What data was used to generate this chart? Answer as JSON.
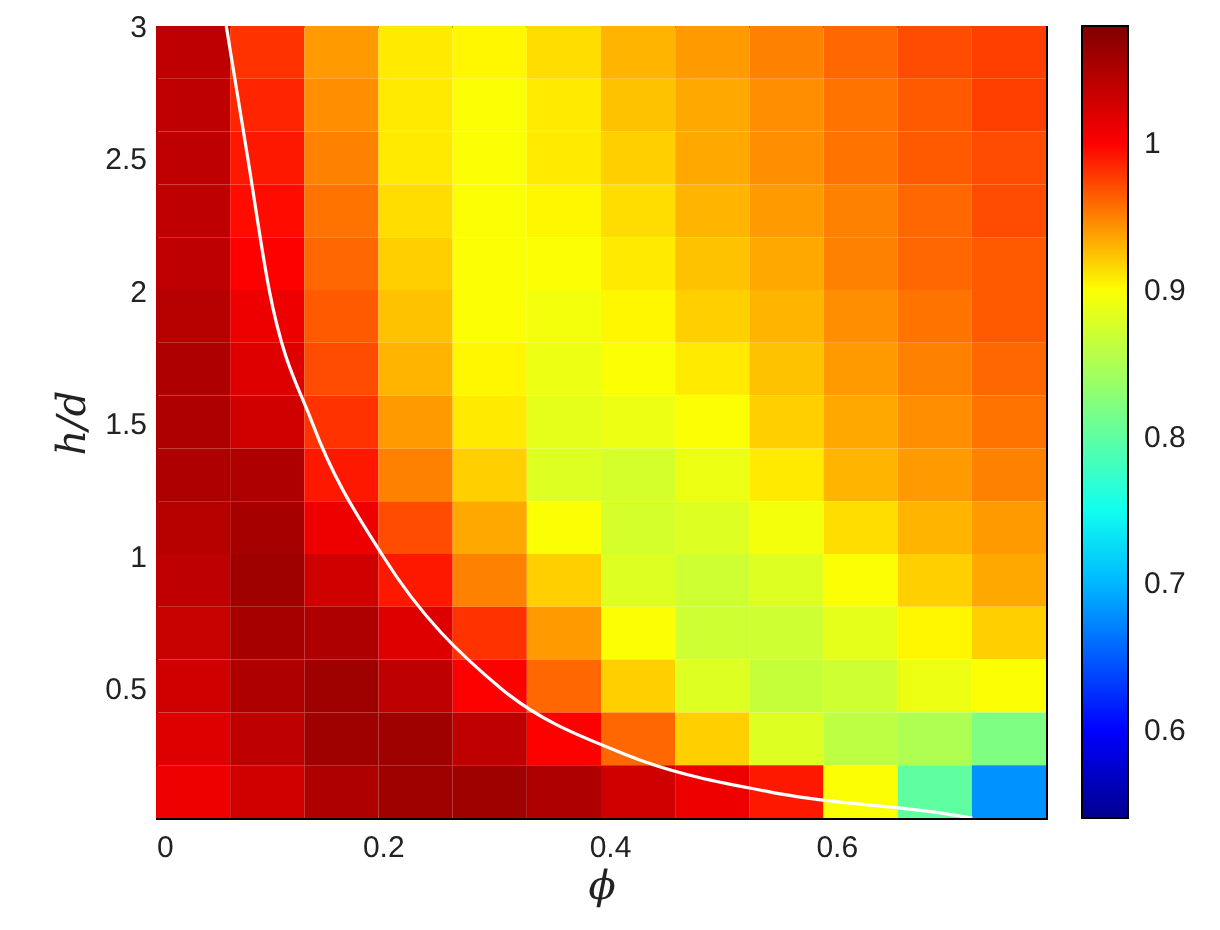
{
  "chart_data": {
    "type": "heatmap",
    "xlabel": "ϕ",
    "ylabel": "h/d",
    "xlim": [
      0,
      0.785
    ],
    "ylim": [
      0.01,
      3
    ],
    "xticks": [
      0,
      0.2,
      0.4,
      0.6
    ],
    "yticks": [
      0.5,
      1,
      1.5,
      2,
      2.5,
      3
    ],
    "clim": [
      0.54,
      1.08
    ],
    "cticks": [
      0.6,
      0.7,
      0.8,
      0.9,
      1
    ],
    "cells": [
      [
        1.04,
        0.98,
        0.94,
        0.91,
        0.905,
        0.915,
        0.93,
        0.94,
        0.95,
        0.96,
        0.97,
        0.975
      ],
      [
        1.04,
        0.985,
        0.945,
        0.91,
        0.9,
        0.91,
        0.925,
        0.935,
        0.945,
        0.955,
        0.965,
        0.975
      ],
      [
        1.04,
        0.99,
        0.95,
        0.91,
        0.9,
        0.91,
        0.92,
        0.935,
        0.945,
        0.955,
        0.965,
        0.97
      ],
      [
        1.04,
        0.995,
        0.955,
        0.915,
        0.9,
        0.905,
        0.915,
        0.93,
        0.94,
        0.95,
        0.96,
        0.97
      ],
      [
        1.04,
        1.0,
        0.96,
        0.92,
        0.9,
        0.9,
        0.91,
        0.925,
        0.935,
        0.95,
        0.96,
        0.965
      ],
      [
        1.045,
        1.01,
        0.965,
        0.925,
        0.9,
        0.895,
        0.905,
        0.92,
        0.93,
        0.945,
        0.955,
        0.965
      ],
      [
        1.05,
        1.02,
        0.97,
        0.93,
        0.905,
        0.89,
        0.9,
        0.91,
        0.925,
        0.94,
        0.95,
        0.96
      ],
      [
        1.05,
        1.03,
        0.98,
        0.94,
        0.91,
        0.885,
        0.89,
        0.9,
        0.92,
        0.935,
        0.945,
        0.955
      ],
      [
        1.05,
        1.05,
        0.99,
        0.95,
        0.92,
        0.88,
        0.875,
        0.89,
        0.91,
        0.93,
        0.94,
        0.95
      ],
      [
        1.045,
        1.055,
        1.01,
        0.97,
        0.935,
        0.9,
        0.875,
        0.88,
        0.895,
        0.915,
        0.93,
        0.94
      ],
      [
        1.04,
        1.06,
        1.03,
        0.99,
        0.95,
        0.92,
        0.88,
        0.87,
        0.88,
        0.9,
        0.92,
        0.935
      ],
      [
        1.035,
        1.055,
        1.05,
        1.02,
        0.98,
        0.94,
        0.9,
        0.87,
        0.87,
        0.885,
        0.905,
        0.92
      ],
      [
        1.03,
        1.05,
        1.06,
        1.04,
        1.0,
        0.96,
        0.92,
        0.88,
        0.865,
        0.87,
        0.89,
        0.9
      ],
      [
        1.02,
        1.04,
        1.06,
        1.06,
        1.04,
        1.0,
        0.96,
        0.92,
        0.88,
        0.86,
        0.85,
        0.82
      ],
      [
        1.01,
        1.03,
        1.05,
        1.06,
        1.06,
        1.05,
        1.03,
        1.01,
        0.99,
        0.9,
        0.8,
        0.68
      ]
    ],
    "series": [
      {
        "type": "line",
        "color": "#ffffff",
        "x": [
          0.062,
          0.081,
          0.1,
          0.138,
          0.2,
          0.304,
          0.414,
          0.552,
          0.69,
          0.72
        ],
        "values": [
          3,
          2.5,
          2,
          1.5,
          1,
          0.5,
          0.25,
          0.1,
          0.03,
          0.01
        ]
      }
    ]
  }
}
